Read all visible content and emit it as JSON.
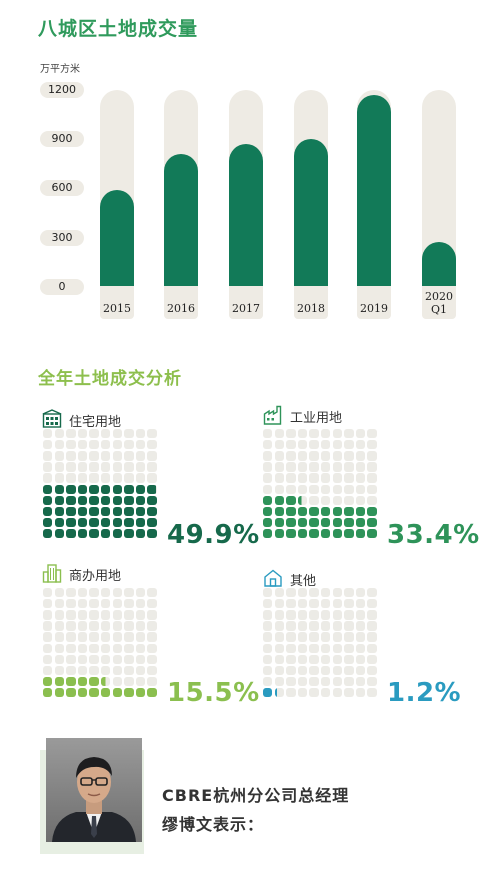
{
  "colors": {
    "title_green": "#2f9a5c",
    "bar_green": "#127a58",
    "track": "#eeebe4",
    "residential": "#16694b",
    "industrial": "#2e9359",
    "commercial": "#8bbf4f",
    "other": "#2a9bc0"
  },
  "chart_data": [
    {
      "type": "bar",
      "title": "八城区土地成交量",
      "ylabel": "万平方米",
      "ylim": [
        0,
        1200
      ],
      "yticks": [
        "1200",
        "900",
        "600",
        "300",
        "0"
      ],
      "categories": [
        "2015",
        "2016",
        "2017",
        "2018",
        "2019",
        "2020\nQ1"
      ],
      "values": [
        590,
        810,
        870,
        900,
        1170,
        270
      ]
    },
    {
      "type": "waffle",
      "title": "全年土地成交分析",
      "series": [
        {
          "name": "住宅用地",
          "value": 49.9,
          "label": "49.9%",
          "icon": "residential-building-icon"
        },
        {
          "name": "工业用地",
          "value": 33.4,
          "label": "33.4%",
          "icon": "factory-icon"
        },
        {
          "name": "商办用地",
          "value": 15.5,
          "label": "15.5%",
          "icon": "office-tower-icon"
        },
        {
          "name": "其他",
          "value": 1.2,
          "label": "1.2%",
          "icon": "house-icon"
        }
      ]
    }
  ],
  "quote": {
    "line1": "CBRE杭州分公司总经理",
    "line2": "缪博文表示："
  }
}
